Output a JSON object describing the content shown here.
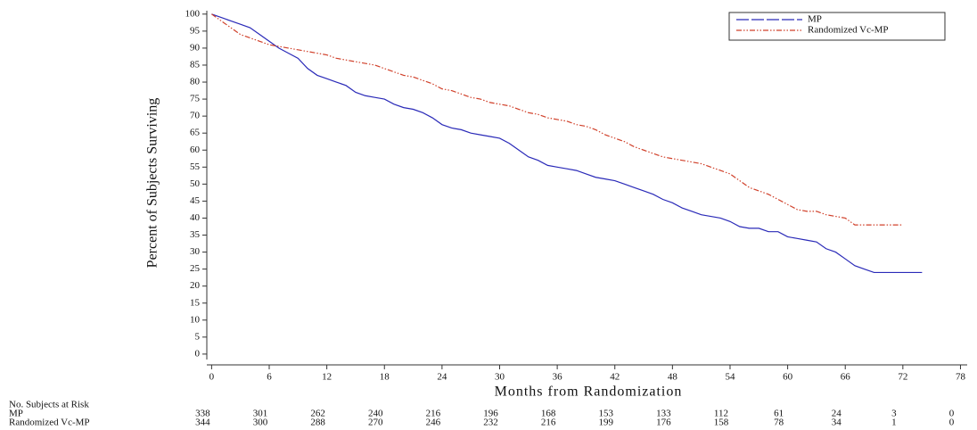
{
  "chart_data": {
    "type": "line",
    "drawstyle": "steps-post",
    "y_label": "Percent of Subjects Surviving",
    "x_label": "Months from Randomization",
    "xlim": [
      -0.5,
      78.7
    ],
    "ylim": [
      -1.6,
      101
    ],
    "xticks": [
      0,
      6,
      12,
      18,
      24,
      30,
      36,
      42,
      48,
      54,
      60,
      66,
      72,
      78
    ],
    "yticks": [
      0,
      5,
      10,
      15,
      20,
      25,
      30,
      35,
      40,
      45,
      50,
      55,
      60,
      65,
      70,
      75,
      80,
      85,
      90,
      95,
      100
    ],
    "legend": "upper right",
    "series": [
      {
        "name": "MP",
        "color": "#2a2ab8",
        "dash": "solid",
        "x": [
          0,
          1,
          2,
          3,
          4,
          5,
          6,
          7,
          8,
          9,
          10,
          11,
          12,
          13,
          14,
          15,
          16,
          17,
          18,
          19,
          20,
          21,
          22,
          23,
          24,
          25,
          26,
          27,
          28,
          29,
          30,
          31,
          32,
          33,
          34,
          35,
          36,
          37,
          38,
          39,
          40,
          41,
          42,
          43,
          44,
          45,
          46,
          47,
          48,
          49,
          50,
          51,
          52,
          53,
          54,
          55,
          56,
          57,
          58,
          59,
          60,
          61,
          62,
          63,
          64,
          65,
          66,
          67,
          68,
          69,
          70,
          74
        ],
        "values": [
          100,
          99,
          98,
          97,
          96,
          94,
          92,
          90,
          88.5,
          87,
          84,
          82,
          81,
          80,
          79,
          77,
          76,
          75.5,
          75,
          73.5,
          72.5,
          72,
          71,
          69.5,
          67.5,
          66.5,
          66,
          65,
          64.5,
          64,
          63.5,
          62,
          60,
          58,
          57,
          55.5,
          55,
          54.5,
          54,
          53,
          52,
          51.5,
          51,
          50,
          49,
          48,
          47,
          45.5,
          44.5,
          43,
          42,
          41,
          40.5,
          40,
          39,
          37.5,
          37,
          37,
          36,
          36,
          34.5,
          34,
          33.5,
          33,
          31,
          30,
          28,
          26,
          25,
          24,
          24,
          24
        ]
      },
      {
        "name": "Randomized Vc-MP",
        "color": "#d0402a",
        "dash": "dash-dot-dot",
        "x": [
          0,
          1,
          2,
          3,
          4,
          5,
          6,
          7,
          8,
          9,
          10,
          11,
          12,
          13,
          14,
          15,
          16,
          17,
          18,
          19,
          20,
          21,
          22,
          23,
          24,
          25,
          26,
          27,
          28,
          29,
          30,
          31,
          32,
          33,
          34,
          35,
          36,
          37,
          38,
          39,
          40,
          41,
          42,
          43,
          44,
          45,
          46,
          47,
          48,
          49,
          50,
          51,
          52,
          53,
          54,
          55,
          56,
          57,
          58,
          59,
          60,
          61,
          62,
          63,
          64,
          65,
          66,
          67,
          68,
          72
        ],
        "values": [
          100,
          98,
          96,
          94,
          93,
          92,
          91,
          90.5,
          90,
          89.5,
          89,
          88.5,
          88,
          87,
          86.5,
          86,
          85.5,
          85,
          84,
          83,
          82,
          81.5,
          80.5,
          79.5,
          78,
          77.5,
          76.5,
          75.5,
          75,
          74,
          73.5,
          73,
          72,
          71,
          70.5,
          69.5,
          69,
          68.5,
          67.5,
          67,
          66,
          64.5,
          63.5,
          62.5,
          61,
          60,
          59,
          58,
          57.5,
          57,
          56.5,
          56,
          55,
          54,
          53,
          51,
          49,
          48,
          47,
          45.5,
          44,
          42.5,
          42,
          42,
          41,
          40.5,
          40,
          38,
          38,
          38
        ]
      }
    ],
    "risk_table": {
      "title": "No. Subjects at Risk",
      "rows": [
        {
          "name": "MP",
          "values": [
            338,
            301,
            262,
            240,
            216,
            196,
            168,
            153,
            133,
            112,
            61,
            24,
            3,
            0
          ]
        },
        {
          "name": "Randomized Vc-MP",
          "values": [
            344,
            300,
            288,
            270,
            246,
            232,
            216,
            199,
            176,
            158,
            78,
            34,
            1,
            0
          ]
        }
      ]
    }
  }
}
